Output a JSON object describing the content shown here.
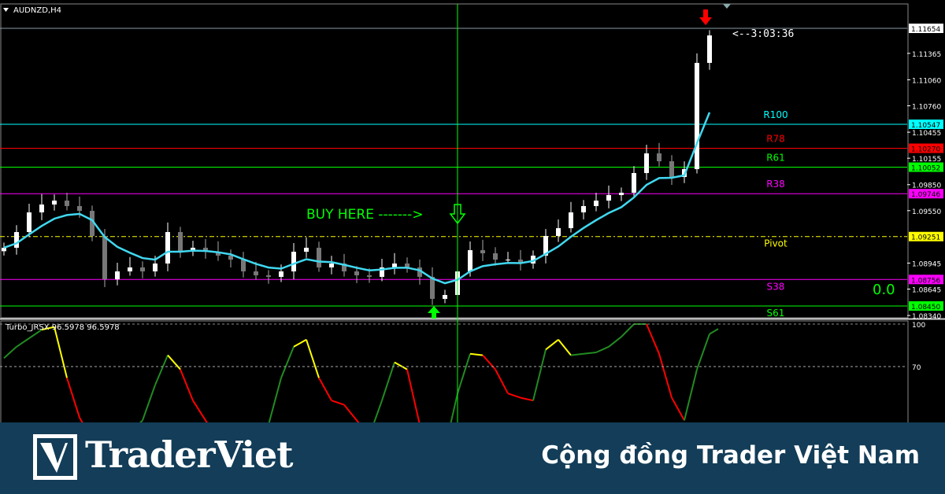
{
  "chart_data": [
    {
      "type": "candlestick",
      "title": "AUDNZD,H4",
      "ylim": [
        1.0829,
        1.119
      ],
      "closes": [
        1.09122,
        1.09303,
        1.0953,
        1.09621,
        1.09666,
        1.09603,
        1.09548,
        1.09258,
        1.08758,
        1.08849,
        1.08895,
        1.08849,
        1.0894,
        1.09303,
        1.09076,
        1.09122,
        1.09076,
        1.09031,
        1.08985,
        1.08849,
        1.08804,
        1.08786,
        1.08849,
        1.09076,
        1.09122,
        1.08895,
        1.0894,
        1.08849,
        1.08804,
        1.08786,
        1.08895,
        1.0894,
        1.08895,
        1.08786,
        1.08532,
        1.08577,
        1.08849,
        1.09094,
        1.09058,
        1.08985,
        1.08985,
        1.0894,
        1.09031,
        1.09258,
        1.09348,
        1.0953,
        1.09603,
        1.09666,
        1.0973,
        1.09757,
        1.09984,
        1.10211,
        1.1012,
        1.09938,
        1.10029,
        1.11255,
        1.11572
      ],
      "current_price": 1.11654,
      "countdown": "<--3:03:36",
      "price_ticks": [
        1.11365,
        1.1106,
        1.1076,
        1.10455,
        1.10155,
        1.0985,
        1.0955,
        1.08945,
        1.08645,
        1.0834
      ],
      "levels": [
        {
          "label": "R100",
          "price": 1.10547,
          "color": "#00ffff",
          "style": "solid"
        },
        {
          "label": "R78",
          "price": 1.1027,
          "color": "#ff0000",
          "style": "solid"
        },
        {
          "label": "R61",
          "price": 1.10052,
          "color": "#00ff00",
          "style": "solid"
        },
        {
          "label": "R38",
          "price": 1.09746,
          "color": "#ff00ff",
          "style": "solid"
        },
        {
          "label": "Pivot",
          "price": 1.09251,
          "color": "#ffff00",
          "style": "dashdot"
        },
        {
          "label": "S38",
          "price": 1.08756,
          "color": "#ff00ff",
          "style": "solid"
        },
        {
          "label": "S61",
          "price": 1.0845,
          "color": "#00ff00",
          "style": "solid"
        }
      ],
      "moving_average_color": "#40d8f0",
      "annotations": {
        "buy_text": "BUY HERE ------->",
        "zero_value": "0.0"
      },
      "signal_colors": {
        "buy_arrow": "#00ff00",
        "sell_arrow": "#ff0000"
      }
    },
    {
      "type": "line",
      "title": "Turbo_JRSX 96.5978 96.5978",
      "ylim": [
        0,
        100
      ],
      "levels": [
        {
          "label": "100",
          "value": 100
        },
        {
          "label": "70",
          "value": 70
        }
      ],
      "values": [
        76,
        84,
        90,
        96,
        98,
        62,
        34,
        18,
        7,
        9,
        23,
        32,
        57,
        78,
        68,
        46,
        32,
        18,
        9,
        12,
        18,
        29,
        62,
        84,
        89,
        62,
        46,
        43,
        32,
        21,
        46,
        73,
        68,
        29,
        12,
        12,
        51,
        79,
        78,
        68,
        51,
        48,
        46,
        82,
        89,
        78,
        79,
        80,
        84,
        91,
        100,
        100,
        79,
        48,
        32,
        68,
        93,
        96.5978
      ],
      "colors": {
        "up": "#228b22",
        "down": "#ff0000",
        "turn": "#ffff00"
      }
    }
  ],
  "banner": {
    "logo": "TraderViet",
    "slogan": "Cộng đồng Trader Việt Nam"
  }
}
